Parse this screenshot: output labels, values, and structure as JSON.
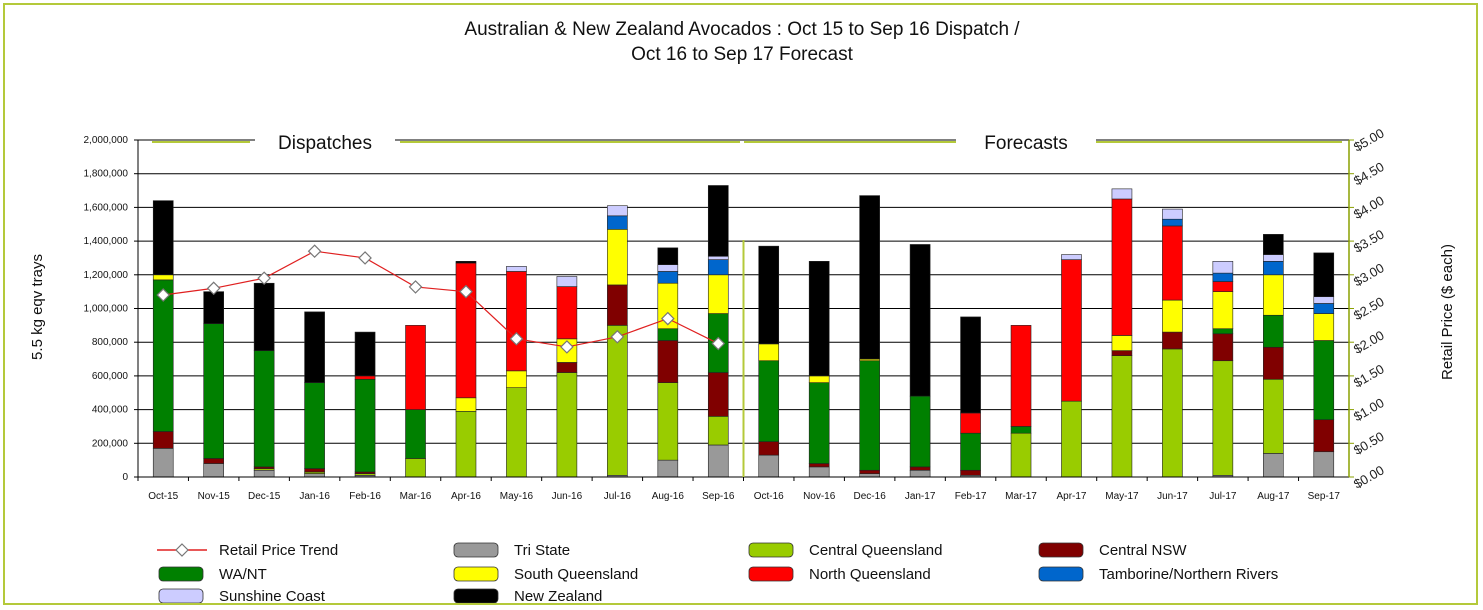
{
  "chart_data": {
    "type": "bar",
    "stacked": true,
    "title": "Australian & New Zealand Avocados : Oct 15 to Sep 16 Dispatch /",
    "subtitle": "Oct 16 to Sep 17 Forecast",
    "ylabel": "5.5 kg eqv trays",
    "y2label": "Retail Price ($ each)",
    "ylim": [
      0,
      2000000
    ],
    "y2lim": [
      0,
      5
    ],
    "yticks": [
      "0",
      "200,000",
      "400,000",
      "600,000",
      "800,000",
      "1,000,000",
      "1,200,000",
      "1,400,000",
      "1,600,000",
      "1,800,000",
      "2,000,000"
    ],
    "y2ticks": [
      "$0.00",
      "$0.50",
      "$1.00",
      "$1.50",
      "$2.00",
      "$2.50",
      "$3.00",
      "$3.50",
      "$4.00",
      "$4.50",
      "$5.00"
    ],
    "grid": true,
    "legend_position": "bottom",
    "sections": [
      {
        "label": "Dispatches",
        "start_index": 0,
        "end_index": 11
      },
      {
        "label": "Forecasts",
        "start_index": 12,
        "end_index": 23
      }
    ],
    "categories": [
      "Oct-15",
      "Nov-15",
      "Dec-15",
      "Jan-16",
      "Feb-16",
      "Mar-16",
      "Apr-16",
      "May-16",
      "Jun-16",
      "Jul-16",
      "Aug-16",
      "Sep-16",
      "Oct-16",
      "Nov-16",
      "Dec-16",
      "Jan-17",
      "Feb-17",
      "Mar-17",
      "Apr-17",
      "May-17",
      "Jun-17",
      "Jul-17",
      "Aug-17",
      "Sep-17"
    ],
    "series": [
      {
        "name": "Tri State",
        "color": "#999999",
        "values": [
          170000,
          80000,
          40000,
          20000,
          10000,
          0,
          0,
          0,
          0,
          10000,
          100000,
          190000,
          130000,
          60000,
          20000,
          40000,
          10000,
          0,
          0,
          0,
          0,
          10000,
          140000,
          150000
        ]
      },
      {
        "name": "Central Queensland",
        "color": "#99cc00",
        "values": [
          0,
          0,
          10000,
          10000,
          10000,
          110000,
          390000,
          530000,
          620000,
          890000,
          460000,
          170000,
          0,
          0,
          0,
          0,
          0,
          260000,
          450000,
          720000,
          760000,
          680000,
          440000,
          0
        ]
      },
      {
        "name": "Central NSW",
        "color": "#800000",
        "values": [
          100000,
          30000,
          10000,
          20000,
          10000,
          0,
          0,
          0,
          60000,
          240000,
          250000,
          260000,
          80000,
          20000,
          20000,
          20000,
          30000,
          0,
          0,
          30000,
          100000,
          160000,
          190000,
          190000
        ]
      },
      {
        "name": "WA/NT",
        "color": "#008000",
        "values": [
          900000,
          800000,
          690000,
          510000,
          550000,
          290000,
          0,
          0,
          0,
          0,
          70000,
          350000,
          480000,
          480000,
          650000,
          420000,
          220000,
          40000,
          0,
          0,
          0,
          30000,
          190000,
          470000
        ]
      },
      {
        "name": "South Queensland",
        "color": "#ffff00",
        "values": [
          30000,
          0,
          0,
          0,
          0,
          0,
          80000,
          100000,
          140000,
          330000,
          270000,
          230000,
          100000,
          40000,
          10000,
          0,
          0,
          0,
          0,
          90000,
          190000,
          220000,
          240000,
          160000
        ]
      },
      {
        "name": "North Queensland",
        "color": "#ff0000",
        "values": [
          0,
          0,
          0,
          0,
          20000,
          500000,
          800000,
          590000,
          310000,
          0,
          0,
          0,
          0,
          0,
          0,
          0,
          120000,
          600000,
          840000,
          810000,
          440000,
          60000,
          0,
          0
        ]
      },
      {
        "name": "Tamborine/Northern Rivers",
        "color": "#0066cc",
        "values": [
          0,
          0,
          0,
          0,
          0,
          0,
          0,
          0,
          0,
          80000,
          70000,
          90000,
          0,
          0,
          0,
          0,
          0,
          0,
          0,
          0,
          40000,
          50000,
          80000,
          60000
        ]
      },
      {
        "name": "Sunshine Coast",
        "color": "#ccccff",
        "values": [
          0,
          0,
          0,
          0,
          0,
          0,
          0,
          30000,
          60000,
          60000,
          40000,
          20000,
          0,
          0,
          0,
          0,
          0,
          0,
          30000,
          60000,
          60000,
          70000,
          40000,
          40000
        ]
      },
      {
        "name": "New Zealand",
        "color": "#000000",
        "values": [
          440000,
          190000,
          400000,
          420000,
          260000,
          0,
          10000,
          0,
          0,
          0,
          100000,
          420000,
          580000,
          680000,
          970000,
          900000,
          570000,
          0,
          0,
          0,
          0,
          0,
          120000,
          260000
        ]
      }
    ],
    "line_series": {
      "name": "Retail Price Trend",
      "axis": "right",
      "color": "#e02020",
      "values": [
        2.7,
        2.8,
        2.95,
        3.35,
        3.25,
        2.82,
        2.75,
        2.05,
        1.93,
        2.08,
        2.35,
        1.98,
        null,
        null,
        null,
        null,
        null,
        null,
        null,
        null,
        null,
        null,
        null,
        null
      ]
    }
  }
}
